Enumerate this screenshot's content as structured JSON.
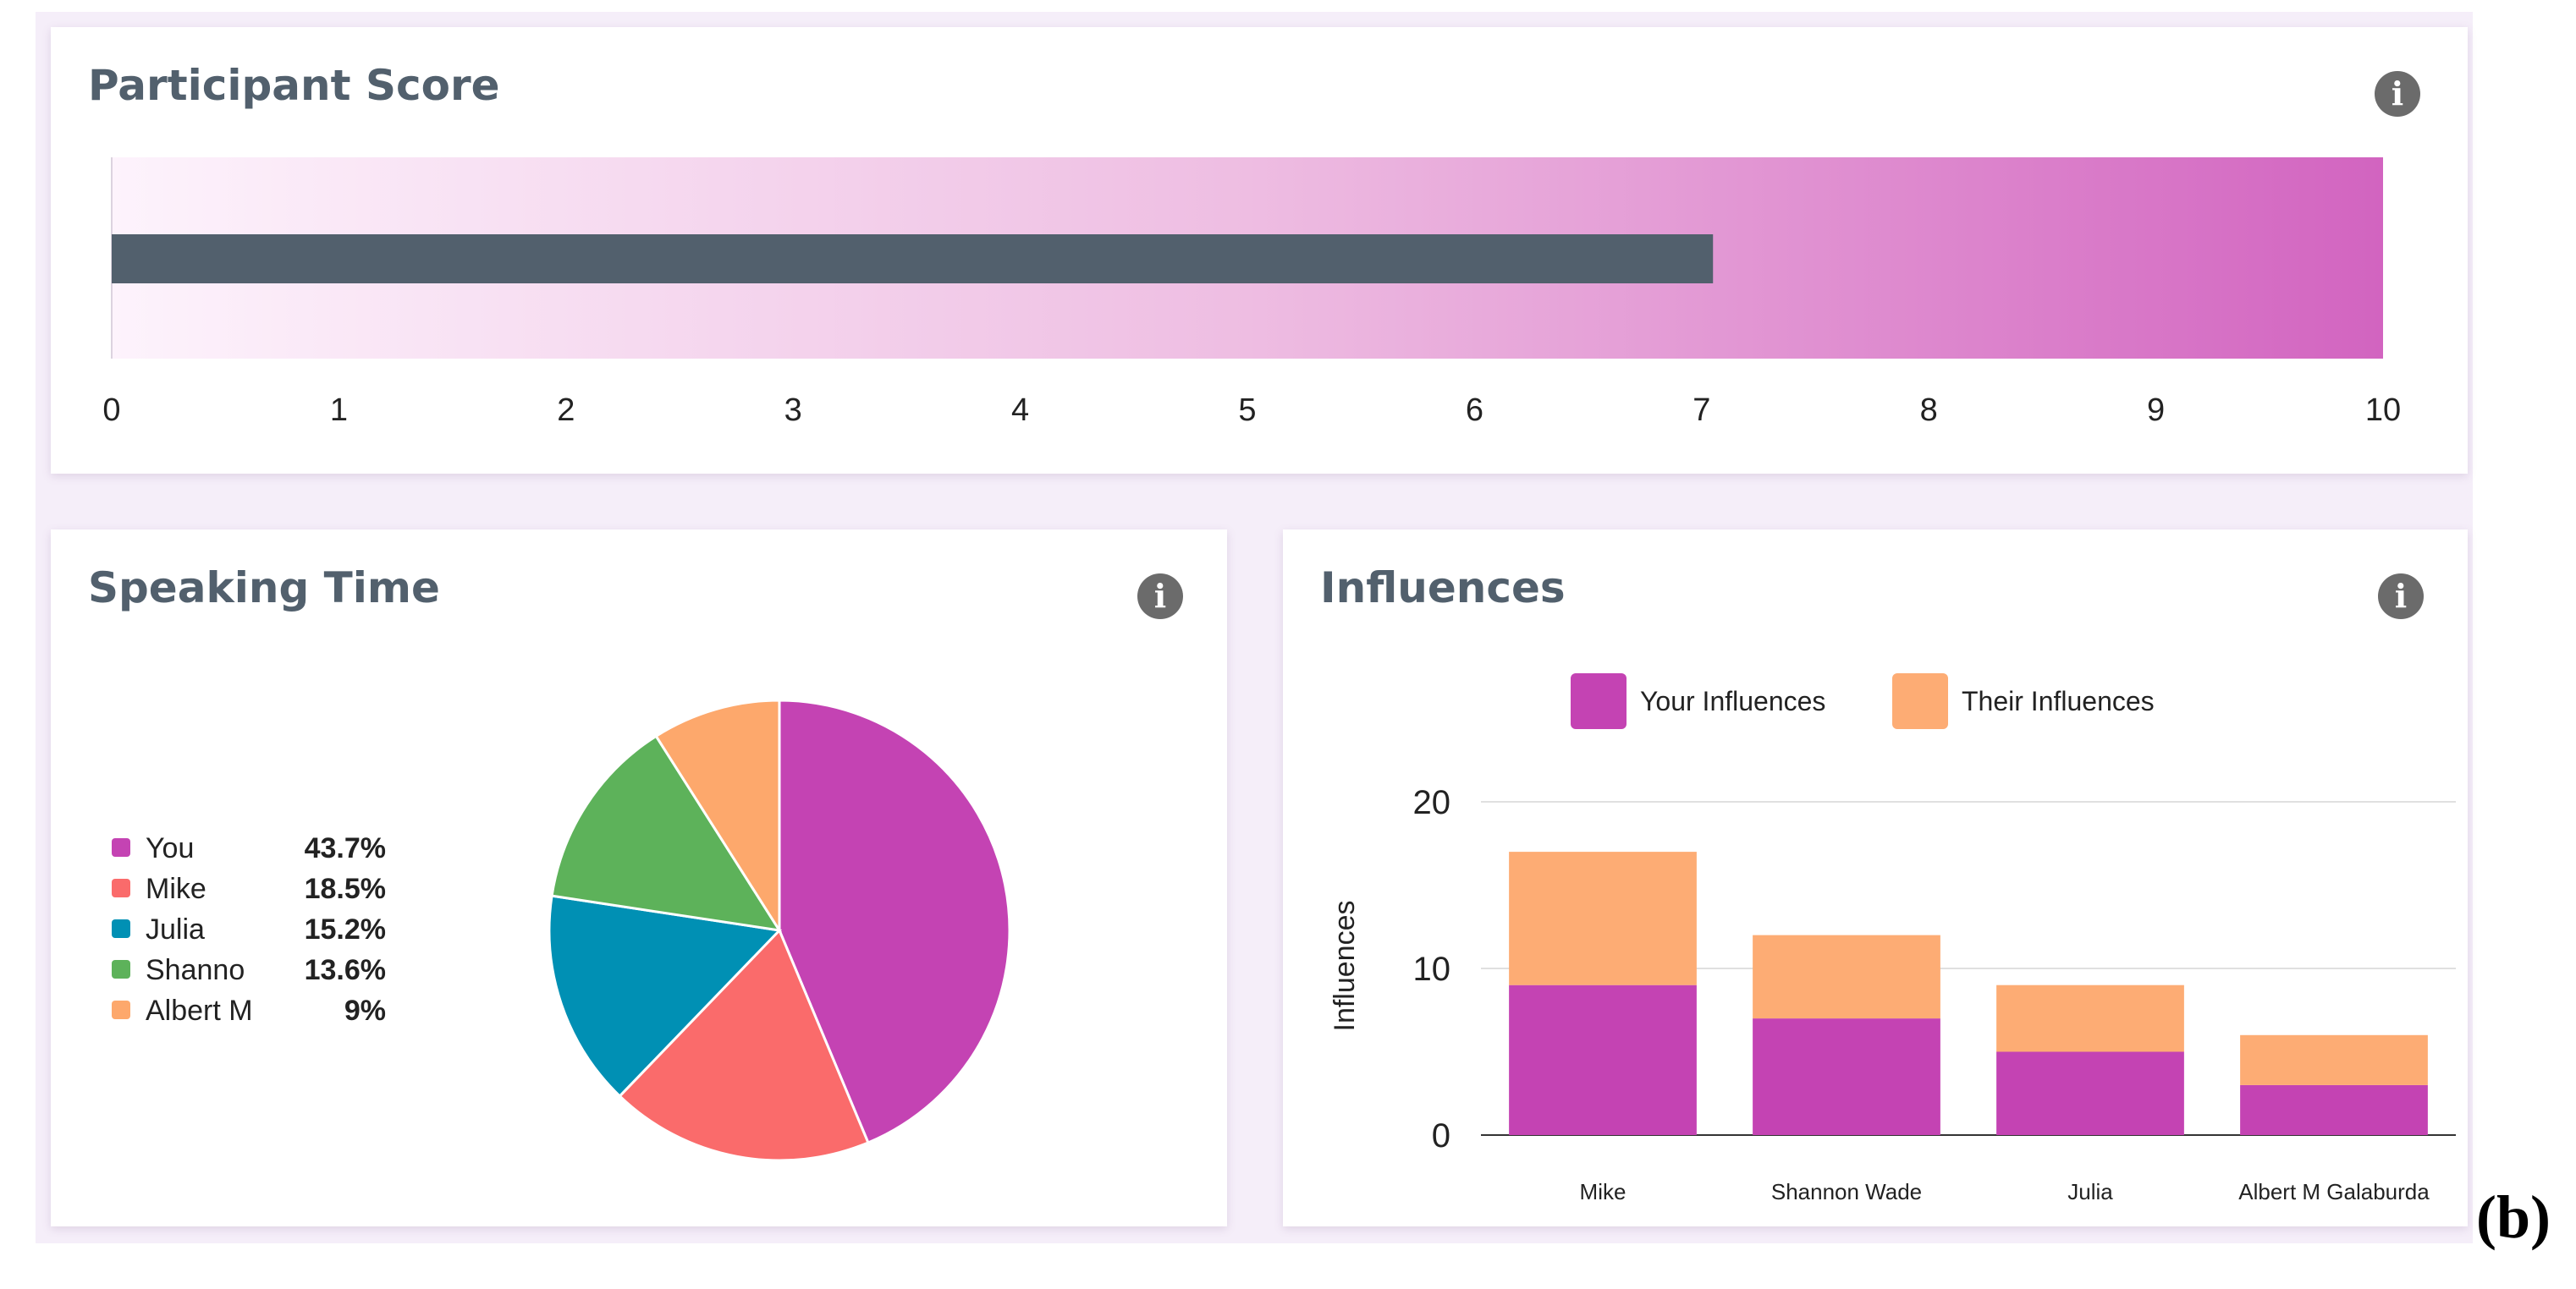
{
  "figure_label": "(b)",
  "colors": {
    "accent": "#c443b3",
    "score_bar": "#52606d",
    "title": "#52606d",
    "panel_bg": "#f5eef9"
  },
  "participant_score": {
    "title": "Participant Score",
    "info_icon": "info-icon",
    "info_glyph": "i"
  },
  "speaking_time": {
    "title": "Speaking Time",
    "info_icon": "info-icon",
    "info_glyph": "i"
  },
  "influences": {
    "title": "Influences",
    "info_icon": "info-icon",
    "info_glyph": "i"
  },
  "chart_data": [
    {
      "type": "bar",
      "orientation": "horizontal",
      "title": "Participant Score",
      "value": 7.05,
      "xlim": [
        0,
        10
      ],
      "xticks": [
        0,
        1,
        2,
        3,
        4,
        5,
        6,
        7,
        8,
        9,
        10
      ],
      "background": "gradient from #fdf3fc to #d264c0"
    },
    {
      "type": "pie",
      "title": "Speaking Time",
      "legend_position": "left",
      "slices": [
        {
          "label": "You",
          "value": 43.7,
          "display": "43.7%",
          "color": "#c443b3"
        },
        {
          "label": "Mike",
          "value": 18.5,
          "display": "18.5%",
          "color": "#fa6b6b"
        },
        {
          "label": "Julia",
          "value": 15.2,
          "display": "15.2%",
          "color": "#0090b4"
        },
        {
          "label": "Shanno",
          "value": 13.6,
          "display": "13.6%",
          "color": "#5db25a"
        },
        {
          "label": "Albert M",
          "value": 9,
          "display": "9%",
          "color": "#fda86c"
        }
      ]
    },
    {
      "type": "bar",
      "stacked": true,
      "title": "Influences",
      "ylabel": "Influences",
      "ylim": [
        0,
        20
      ],
      "yticks": [
        0,
        10,
        20
      ],
      "grid": true,
      "legend_position": "top",
      "categories": [
        "Mike",
        "Shannon Wade",
        "Julia",
        "Albert M Galaburda"
      ],
      "series": [
        {
          "name": "Your Influences",
          "values": [
            9,
            7,
            5,
            3
          ],
          "color": "#c443b3"
        },
        {
          "name": "Their Influences",
          "values": [
            8,
            5,
            4,
            3
          ],
          "color": "#fdac74"
        }
      ]
    }
  ]
}
